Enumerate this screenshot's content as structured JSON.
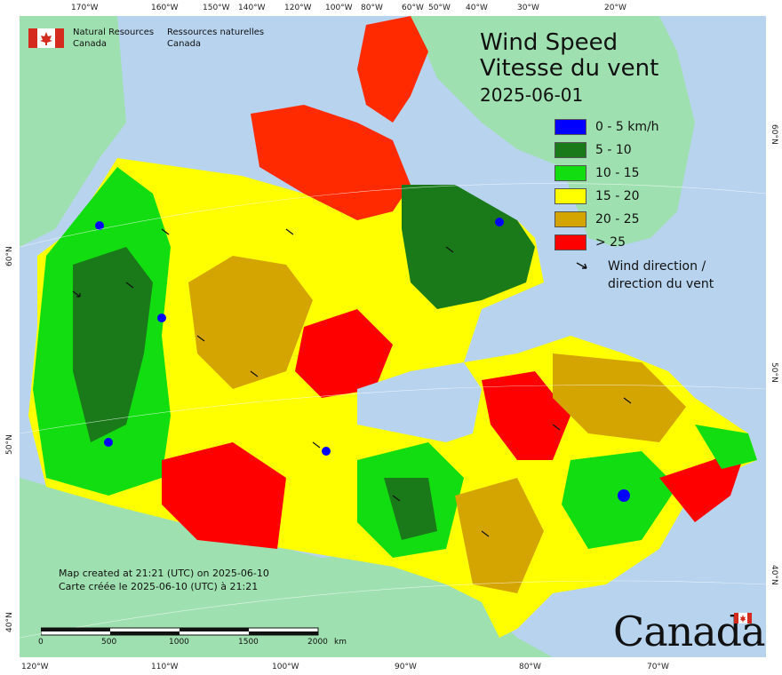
{
  "title": {
    "en": "Wind Speed",
    "fr": "Vitesse du vent",
    "date": "2025-06-01"
  },
  "department": {
    "en_line1": "Natural Resources",
    "en_line2": "Canada",
    "fr_line1": "Ressources naturelles",
    "fr_line2": "Canada"
  },
  "legend": {
    "classes": [
      {
        "label": "0 - 5 km/h",
        "color": "#0000ff"
      },
      {
        "label": "5 - 10",
        "color": "#1a7a1a"
      },
      {
        "label": "10 - 15",
        "color": "#11dd11"
      },
      {
        "label": "15 - 20",
        "color": "#ffff00"
      },
      {
        "label": "20 - 25",
        "color": "#d4a400"
      },
      {
        "label": "> 25",
        "color": "#ff0000"
      }
    ],
    "wind_en": "Wind direction /",
    "wind_fr": "direction du vent"
  },
  "created": {
    "en": "Map created at 21:21 (UTC) on 2025-06-10",
    "fr": "Carte créée le 2025-06-10 (UTC) à 21:21"
  },
  "scale": {
    "labels": [
      "0",
      "500",
      "1000",
      "1500",
      "2000"
    ],
    "unit": "km"
  },
  "wordmark": "Canada",
  "graticule": {
    "top": [
      "170°W",
      "160°W",
      "150°W",
      "140°W",
      "120°W",
      "100°W",
      "80°W",
      "60°W",
      "50°W",
      "40°W",
      "30°W",
      "20°W"
    ],
    "bottom": [
      "120°W",
      "110°W",
      "100°W",
      "90°W",
      "80°W",
      "70°W"
    ],
    "left": [
      "60°N",
      "50°N",
      "40°N"
    ],
    "right": [
      "60°N",
      "50°N",
      "40°N"
    ]
  },
  "colors": {
    "ocean": "#b7d3ee",
    "land_other": "#9fe0b0"
  }
}
